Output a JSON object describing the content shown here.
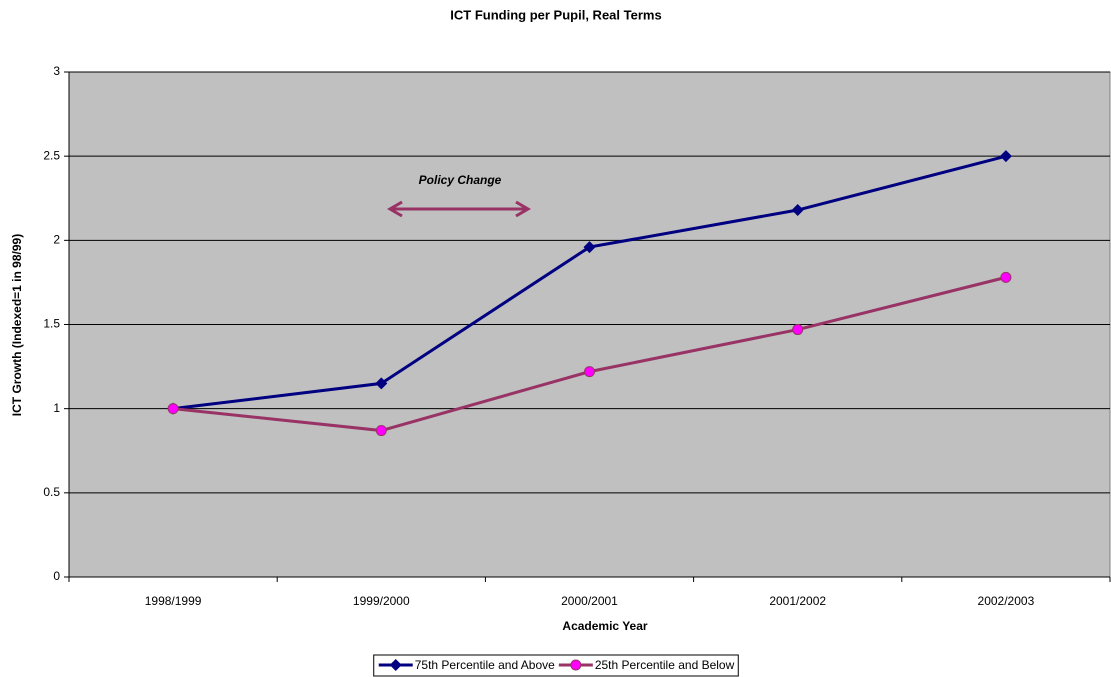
{
  "chart_data": {
    "type": "line",
    "title": "ICT Funding per Pupil, Real Terms",
    "x_label": "Academic Year",
    "y_label": "ICT Growth (Indexed=1 in 98/99)",
    "annotation": "Policy Change",
    "categories": [
      "1998/1999",
      "1999/2000",
      "2000/2001",
      "2001/2002",
      "2002/2003"
    ],
    "series": [
      {
        "name": "75th Percentile and Above",
        "color": "#000080",
        "marker": "diamond",
        "marker_color": "#000080",
        "values": [
          1,
          1.15,
          1.96,
          2.18,
          2.5
        ]
      },
      {
        "name": "25th Percentile and Below",
        "color": "#993366",
        "marker": "circle",
        "marker_color": "#ff00ff",
        "values": [
          1,
          0.87,
          1.22,
          1.47,
          1.78
        ]
      }
    ],
    "ylim": [
      0,
      3
    ],
    "yticks": [
      0,
      0.5,
      1,
      1.5,
      2,
      2.5,
      3
    ],
    "grid": true,
    "legend": "bottom",
    "background": "#c0c0c0"
  }
}
